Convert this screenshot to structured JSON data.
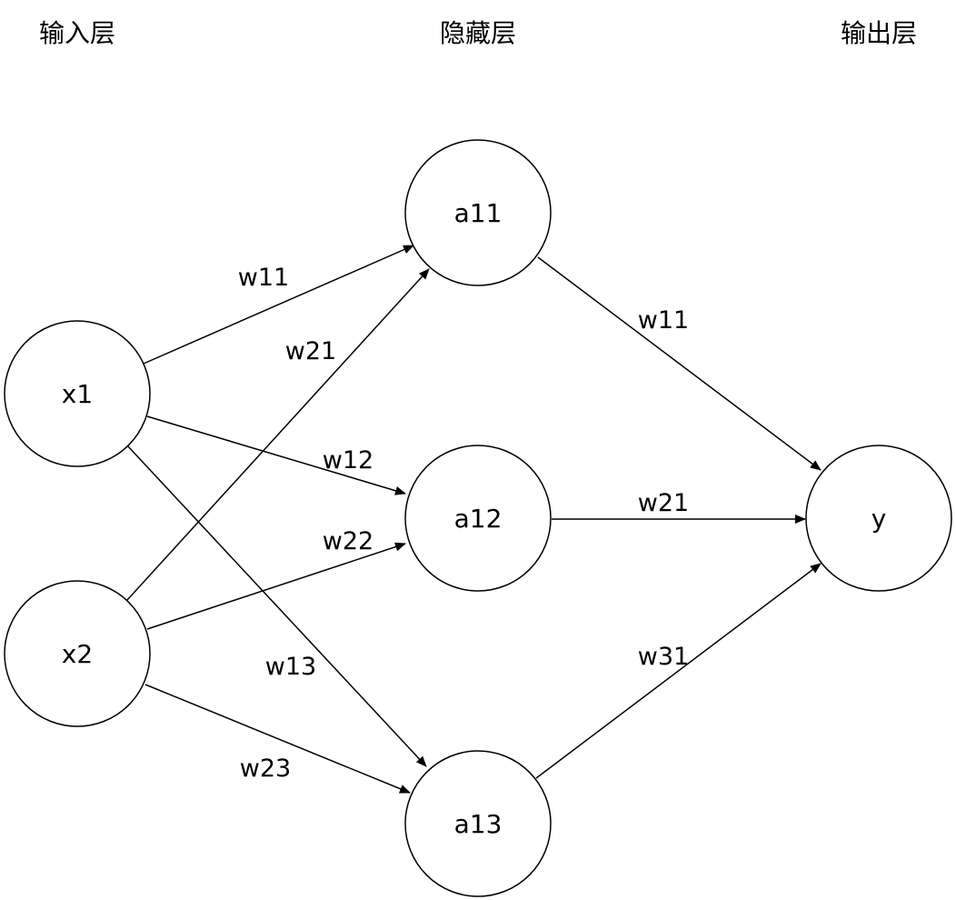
{
  "layers": {
    "input": "输入层",
    "hidden": "隐藏层",
    "output": "输出层"
  },
  "nodes": {
    "x1": "x1",
    "x2": "x2",
    "a11": "a11",
    "a12": "a12",
    "a13": "a13",
    "y": "y"
  },
  "edges": {
    "x1_a11": "w11",
    "x2_a11": "w21",
    "x1_a12": "w12",
    "x2_a12": "w22",
    "x1_a13": "w13",
    "x2_a13": "w23",
    "a11_y": "w11",
    "a12_y": "w21",
    "a13_y": "w31"
  },
  "colors": {
    "stroke": "#000000",
    "fill": "#ffffff"
  }
}
